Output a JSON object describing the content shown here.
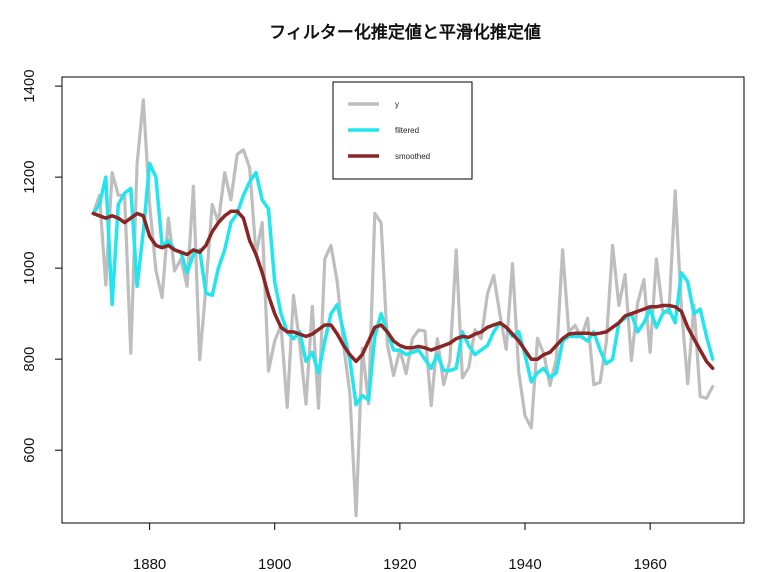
{
  "chart_data": {
    "type": "line",
    "title": "フィルター化推定値と平滑化推定値",
    "xlabel": "",
    "ylabel": "",
    "xlim": [
      1866,
      1975
    ],
    "ylim": [
      440,
      1420
    ],
    "x_ticks": [
      1880,
      1900,
      1920,
      1940,
      1960
    ],
    "y_ticks": [
      600,
      800,
      1000,
      1200,
      1400
    ],
    "grid": false,
    "legend_position": "top-center",
    "legend": [
      {
        "label": "y",
        "color": "#bebebe"
      },
      {
        "label": "filtered",
        "color": "#22e5ee"
      },
      {
        "label": "smoothed",
        "color": "#8b2525"
      }
    ],
    "series": [
      {
        "name": "y",
        "color": "#bebebe",
        "x": [
          1871,
          1872,
          1873,
          1874,
          1875,
          1876,
          1877,
          1878,
          1879,
          1880,
          1881,
          1882,
          1883,
          1884,
          1885,
          1886,
          1887,
          1888,
          1889,
          1890,
          1891,
          1892,
          1893,
          1894,
          1895,
          1896,
          1897,
          1898,
          1899,
          1900,
          1901,
          1902,
          1903,
          1904,
          1905,
          1906,
          1907,
          1908,
          1909,
          1910,
          1911,
          1912,
          1913,
          1914,
          1915,
          1916,
          1917,
          1918,
          1919,
          1920,
          1921,
          1922,
          1923,
          1924,
          1925,
          1926,
          1927,
          1928,
          1929,
          1930,
          1931,
          1932,
          1933,
          1934,
          1935,
          1936,
          1937,
          1938,
          1939,
          1940,
          1941,
          1942,
          1943,
          1944,
          1945,
          1946,
          1947,
          1948,
          1949,
          1950,
          1951,
          1952,
          1953,
          1954,
          1955,
          1956,
          1957,
          1958,
          1959,
          1960,
          1961,
          1962,
          1963,
          1964,
          1965,
          1966,
          1967,
          1968,
          1969,
          1970
        ],
        "values": [
          1120,
          1160,
          963,
          1210,
          1160,
          1160,
          813,
          1230,
          1370,
          1140,
          995,
          935,
          1110,
          994,
          1020,
          960,
          1180,
          799,
          958,
          1140,
          1100,
          1210,
          1150,
          1250,
          1260,
          1220,
          1030,
          1100,
          774,
          840,
          874,
          694,
          940,
          833,
          701,
          916,
          692,
          1020,
          1050,
          969,
          831,
          726,
          456,
          824,
          702,
          1120,
          1100,
          832,
          764,
          821,
          768,
          845,
          864,
          862,
          698,
          845,
          744,
          796,
          1040,
          759,
          781,
          865,
          845,
          944,
          984,
          897,
          822,
          1010,
          771,
          676,
          649,
          846,
          812,
          742,
          801,
          1040,
          860,
          874,
          848,
          890,
          744,
          749,
          838,
          1050,
          918,
          986,
          797,
          923,
          975,
          815,
          1020,
          906,
          901,
          1170,
          912,
          746,
          919,
          718,
          714,
          740
        ]
      },
      {
        "name": "filtered",
        "color": "#22e5ee",
        "x": [
          1871,
          1872,
          1873,
          1874,
          1875,
          1876,
          1877,
          1878,
          1879,
          1880,
          1881,
          1882,
          1883,
          1884,
          1885,
          1886,
          1887,
          1888,
          1889,
          1890,
          1891,
          1892,
          1893,
          1894,
          1895,
          1896,
          1897,
          1898,
          1899,
          1900,
          1901,
          1902,
          1903,
          1904,
          1905,
          1906,
          1907,
          1908,
          1909,
          1910,
          1911,
          1912,
          1913,
          1914,
          1915,
          1916,
          1917,
          1918,
          1919,
          1920,
          1921,
          1922,
          1923,
          1924,
          1925,
          1926,
          1927,
          1928,
          1929,
          1930,
          1931,
          1932,
          1933,
          1934,
          1935,
          1936,
          1937,
          1938,
          1939,
          1940,
          1941,
          1942,
          1943,
          1944,
          1945,
          1946,
          1947,
          1948,
          1949,
          1950,
          1951,
          1952,
          1953,
          1954,
          1955,
          1956,
          1957,
          1958,
          1959,
          1960,
          1961,
          1962,
          1963,
          1964,
          1965,
          1966,
          1967,
          1968,
          1969,
          1970
        ],
        "values": [
          1120,
          1140,
          1200,
          920,
          1140,
          1165,
          1175,
          960,
          1080,
          1230,
          1200,
          1050,
          1060,
          1040,
          1035,
          990,
          1030,
          1040,
          945,
          940,
          1000,
          1040,
          1100,
          1120,
          1160,
          1190,
          1210,
          1150,
          1130,
          970,
          900,
          860,
          845,
          860,
          795,
          815,
          770,
          840,
          900,
          920,
          860,
          800,
          700,
          720,
          710,
          850,
          900,
          860,
          820,
          820,
          810,
          815,
          820,
          800,
          780,
          810,
          775,
          775,
          780,
          860,
          830,
          810,
          820,
          830,
          860,
          880,
          870,
          850,
          860,
          810,
          750,
          770,
          780,
          760,
          770,
          840,
          850,
          850,
          850,
          840,
          860,
          820,
          790,
          800,
          880,
          890,
          900,
          860,
          880,
          910,
          870,
          900,
          910,
          880,
          990,
          970,
          900,
          910,
          850,
          800
        ]
      },
      {
        "name": "smoothed",
        "color": "#8b2525",
        "x": [
          1871,
          1872,
          1873,
          1874,
          1875,
          1876,
          1877,
          1878,
          1879,
          1880,
          1881,
          1882,
          1883,
          1884,
          1885,
          1886,
          1887,
          1888,
          1889,
          1890,
          1891,
          1892,
          1893,
          1894,
          1895,
          1896,
          1897,
          1898,
          1899,
          1900,
          1901,
          1902,
          1903,
          1904,
          1905,
          1906,
          1907,
          1908,
          1909,
          1910,
          1911,
          1912,
          1913,
          1914,
          1915,
          1916,
          1917,
          1918,
          1919,
          1920,
          1921,
          1922,
          1923,
          1924,
          1925,
          1926,
          1927,
          1928,
          1929,
          1930,
          1931,
          1932,
          1933,
          1934,
          1935,
          1936,
          1937,
          1938,
          1939,
          1940,
          1941,
          1942,
          1943,
          1944,
          1945,
          1946,
          1947,
          1948,
          1949,
          1950,
          1951,
          1952,
          1953,
          1954,
          1955,
          1956,
          1957,
          1958,
          1959,
          1960,
          1961,
          1962,
          1963,
          1964,
          1965,
          1966,
          1967,
          1968,
          1969,
          1970
        ],
        "values": [
          1120,
          1115,
          1110,
          1115,
          1110,
          1100,
          1110,
          1120,
          1115,
          1070,
          1050,
          1045,
          1050,
          1040,
          1035,
          1030,
          1040,
          1035,
          1050,
          1080,
          1100,
          1115,
          1125,
          1125,
          1110,
          1060,
          1030,
          990,
          940,
          900,
          870,
          860,
          860,
          855,
          850,
          855,
          865,
          875,
          875,
          855,
          830,
          810,
          795,
          810,
          840,
          870,
          875,
          860,
          840,
          830,
          825,
          825,
          828,
          825,
          820,
          825,
          830,
          835,
          845,
          850,
          848,
          855,
          860,
          870,
          875,
          880,
          870,
          855,
          840,
          820,
          800,
          800,
          810,
          815,
          830,
          845,
          855,
          857,
          857,
          857,
          855,
          857,
          860,
          870,
          880,
          895,
          900,
          905,
          910,
          915,
          915,
          918,
          918,
          915,
          905,
          870,
          845,
          820,
          795,
          780
        ]
      }
    ]
  }
}
